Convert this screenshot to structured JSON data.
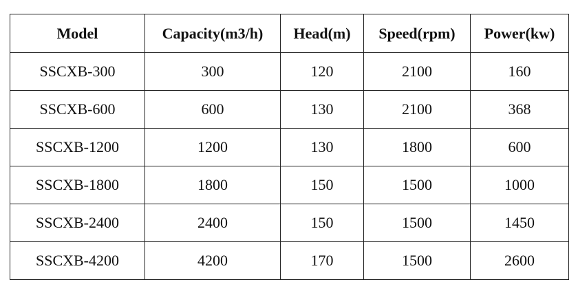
{
  "table": {
    "header": [
      "Model",
      "Capacity(m3/h)",
      "Head(m)",
      "Speed(rpm)",
      "Power(kw)"
    ],
    "rows": [
      [
        "SSCXB-300",
        300,
        120,
        2100,
        160
      ],
      [
        "SSCXB-600",
        600,
        130,
        2100,
        368
      ],
      [
        "SSCXB-1200",
        1200,
        130,
        1800,
        600
      ],
      [
        "SSCXB-1800",
        1800,
        150,
        1500,
        1000
      ],
      [
        "SSCXB-2400",
        2400,
        150,
        1500,
        1450
      ],
      [
        "SSCXB-4200",
        4200,
        170,
        1500,
        2600
      ]
    ]
  }
}
